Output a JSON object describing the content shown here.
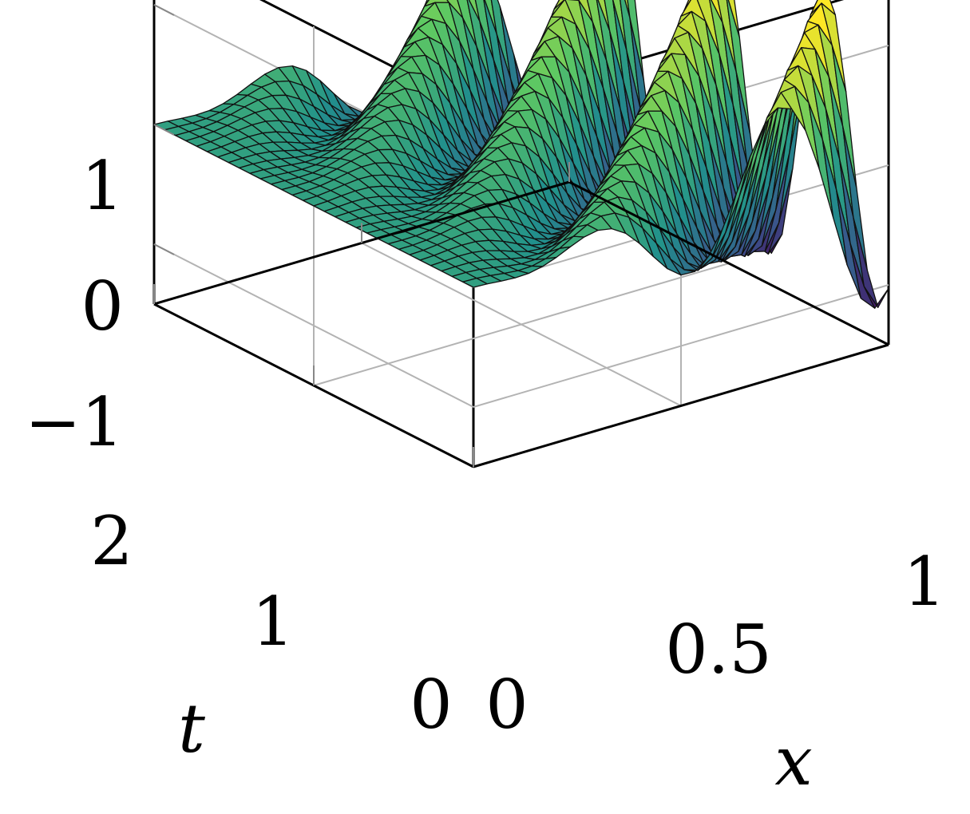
{
  "chart_data": {
    "type": "surface",
    "xlabel": "x",
    "ylabel": "t",
    "zlabel": "",
    "xlim": [
      0,
      1
    ],
    "ylim": [
      0,
      2
    ],
    "zlim": [
      -1.5,
      1.5
    ],
    "x_ticks": [
      {
        "value": 0,
        "label": "0"
      },
      {
        "value": 0.5,
        "label": "0.5"
      },
      {
        "value": 1,
        "label": "1"
      }
    ],
    "t_ticks": [
      {
        "value": 0,
        "label": "0"
      },
      {
        "value": 1,
        "label": "1"
      },
      {
        "value": 2,
        "label": "2"
      }
    ],
    "z_ticks": [
      {
        "value": -1,
        "label": "−1"
      },
      {
        "value": 0,
        "label": "0"
      },
      {
        "value": 1,
        "label": "1"
      }
    ],
    "grid": true,
    "colormap": [
      "#440154",
      "#3b528b",
      "#21918c",
      "#5ec962",
      "#fde725"
    ],
    "surface_description": "u(x,t) = 0 at x=0, wave amplitude grows toward x=1 with minimum near -1.25 at x=1,t=0",
    "mesh": {
      "x_divisions": 30,
      "t_divisions": 30
    }
  }
}
